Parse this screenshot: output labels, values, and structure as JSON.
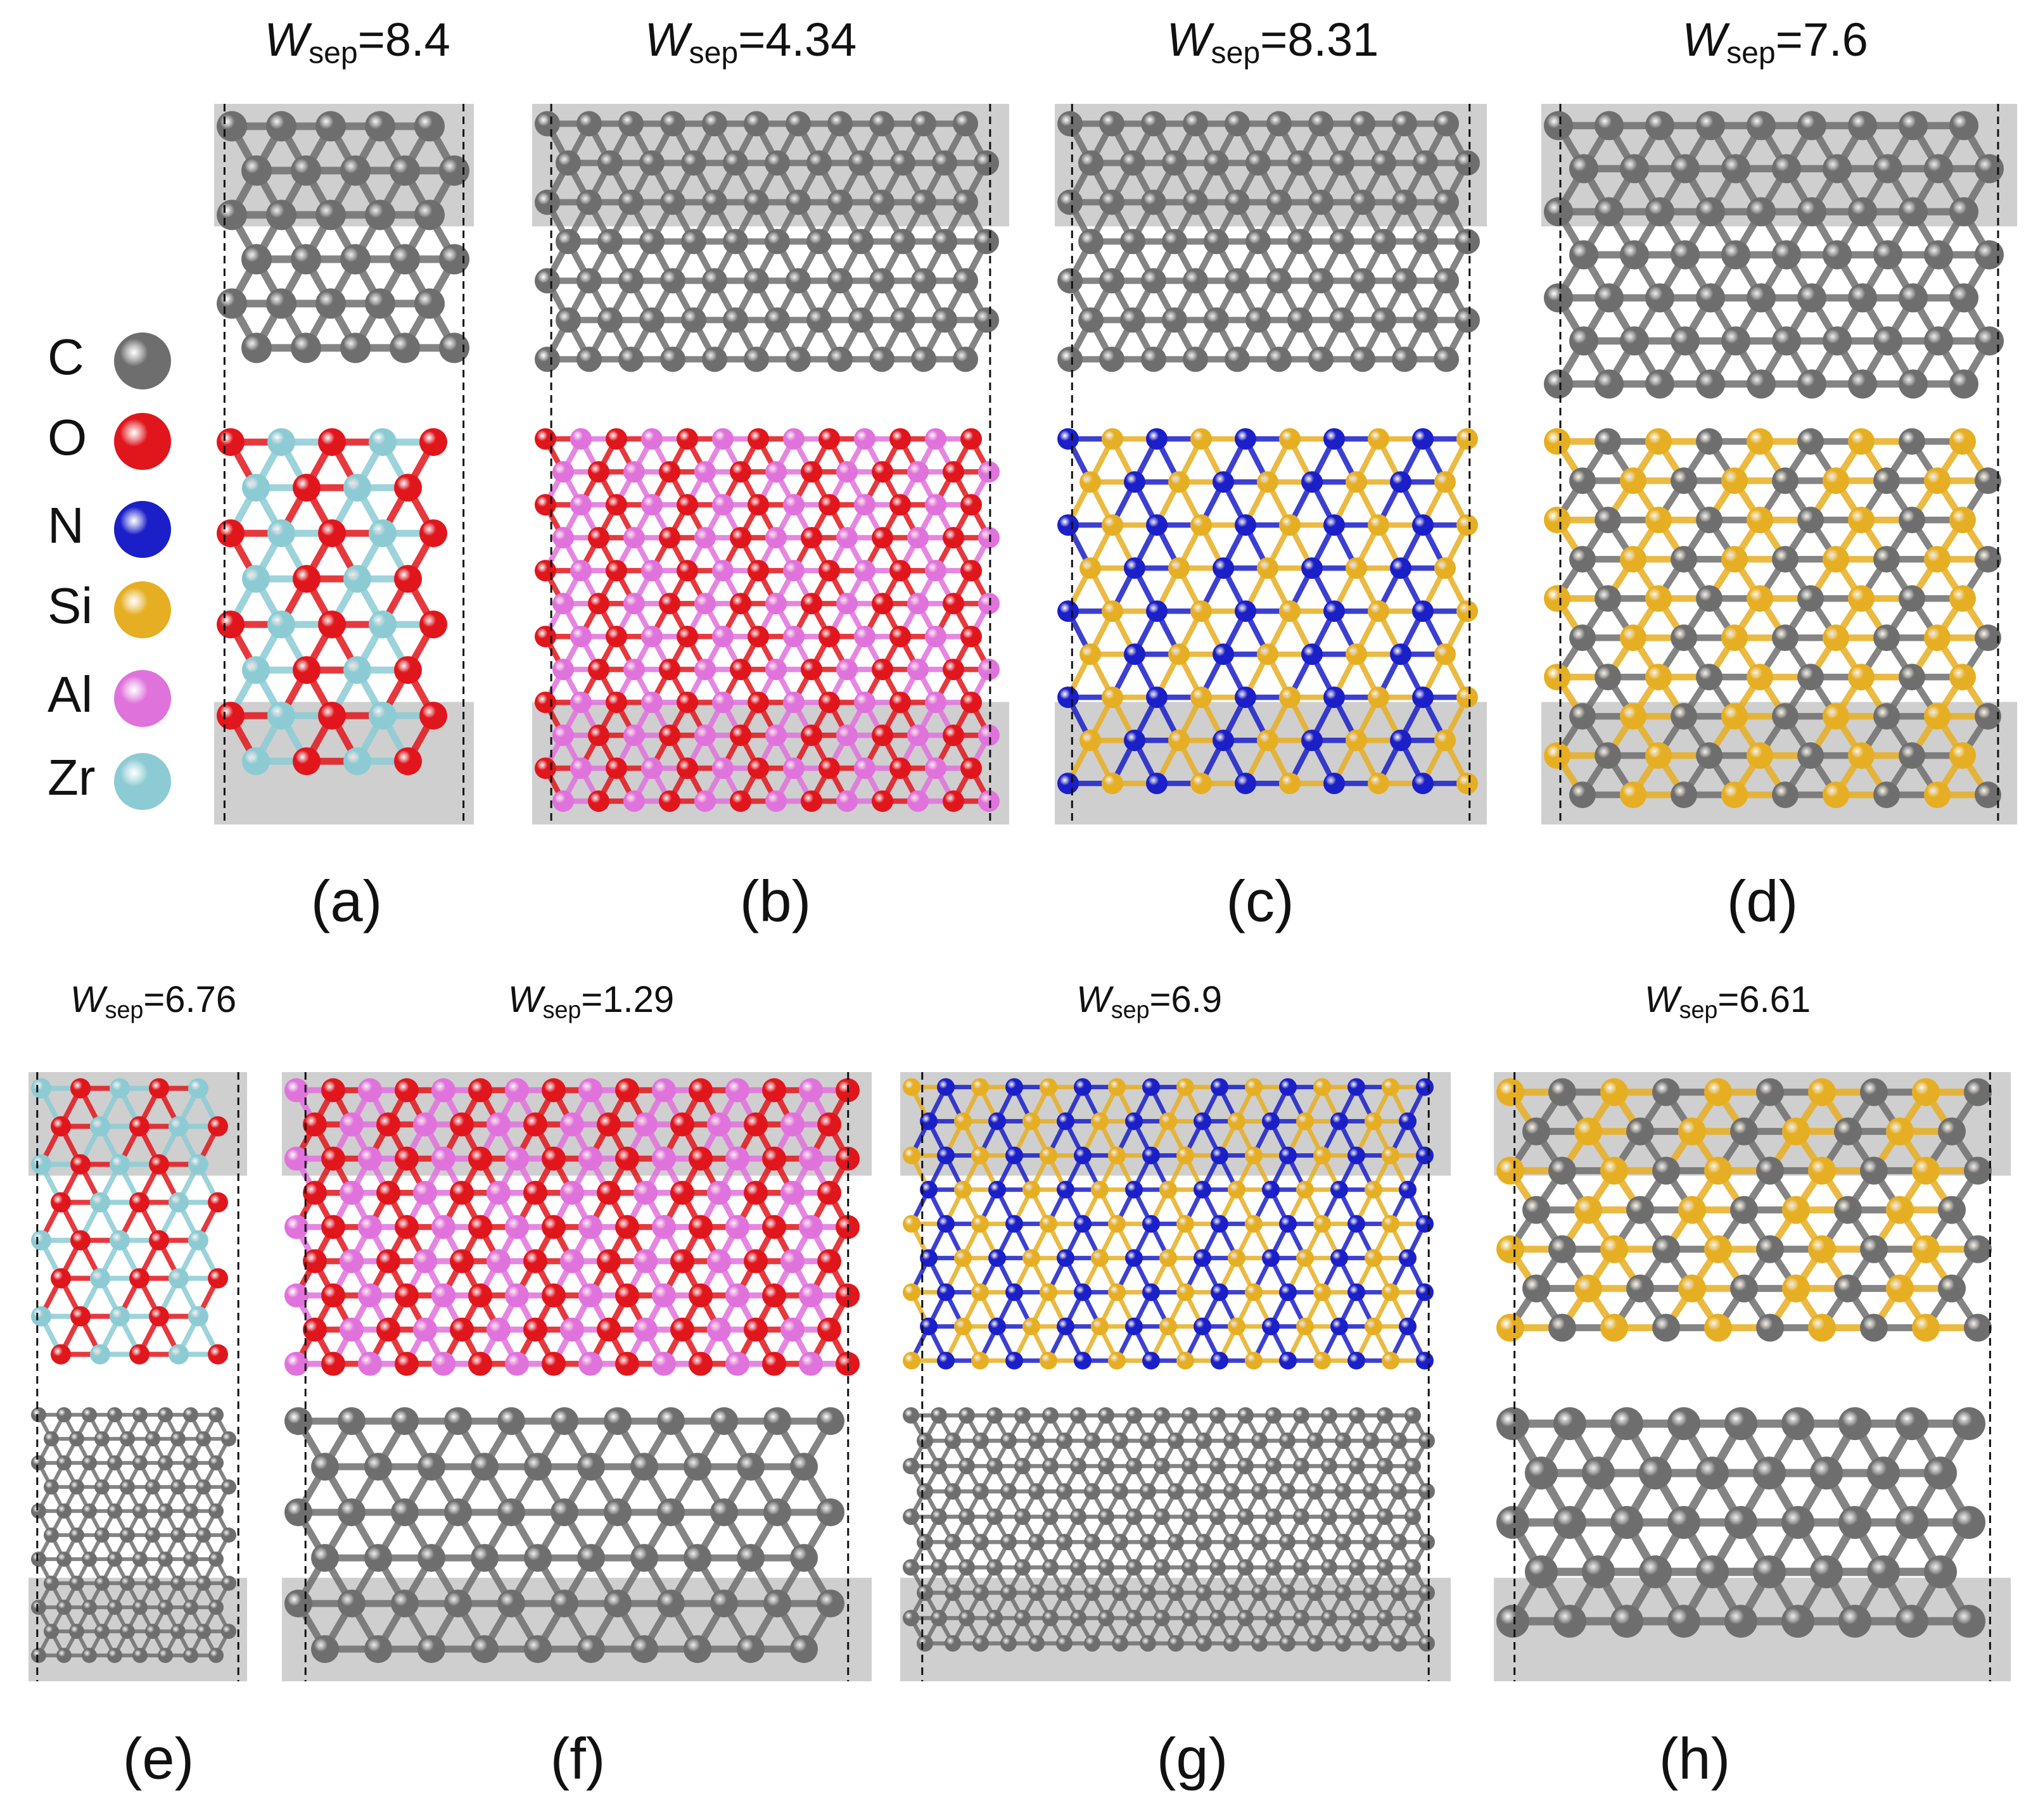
{
  "panels": [
    {
      "title": {
        "symbol": "W",
        "subscript": "sep",
        "value": "=8.4"
      },
      "label": "(a)"
    },
    {
      "title": {
        "symbol": "W",
        "subscript": "sep",
        "value": "=4.34"
      },
      "label": "(b)"
    },
    {
      "title": {
        "symbol": "W",
        "subscript": "sep",
        "value": "=8.31"
      },
      "label": "(c)"
    },
    {
      "title": {
        "symbol": "W",
        "subscript": "sep",
        "value": "=7.6"
      },
      "label": "(d)"
    },
    {
      "title": {
        "symbol": "W",
        "subscript": "sep",
        "value": "=6.76"
      },
      "label": "(e)"
    },
    {
      "title": {
        "symbol": "W",
        "subscript": "sep",
        "value": "=1.29"
      },
      "label": "(f)"
    },
    {
      "title": {
        "symbol": "W",
        "subscript": "sep",
        "value": "=6.9"
      },
      "label": "(g)"
    },
    {
      "title": {
        "symbol": "W",
        "subscript": "sep",
        "value": "=6.61"
      },
      "label": "(h)"
    }
  ],
  "legend": [
    {
      "element": "C",
      "color": "#6e6e6e"
    },
    {
      "element": "O",
      "color": "#e0161c"
    },
    {
      "element": "N",
      "color": "#1a1fc8"
    },
    {
      "element": "Si",
      "color": "#e6ae22"
    },
    {
      "element": "Al",
      "color": "#e072dc"
    },
    {
      "element": "Zr",
      "color": "#8ccbd3"
    }
  ]
}
